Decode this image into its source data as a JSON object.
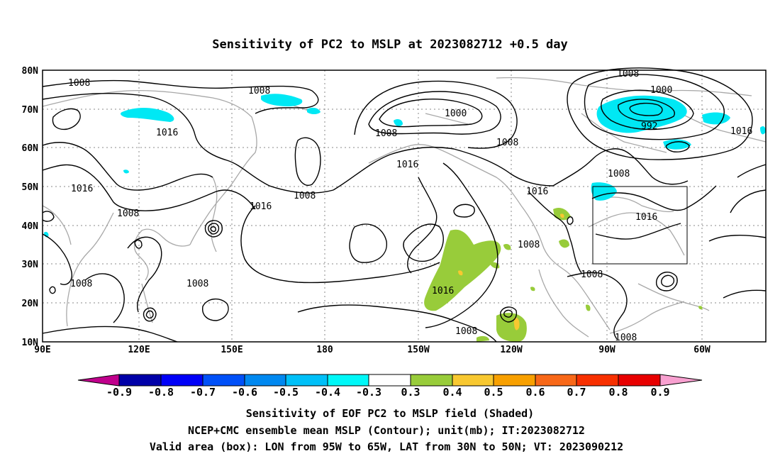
{
  "title": "Sensitivity of PC2 to MSLP at 2023082712 +0.5 day",
  "map": {
    "lat_ticks": [
      "80N",
      "70N",
      "60N",
      "50N",
      "40N",
      "30N",
      "20N",
      "10N"
    ],
    "lon_ticks": [
      "90E",
      "120E",
      "150E",
      "180",
      "150W",
      "120W",
      "90W",
      "60W"
    ],
    "lon_range": [
      "90E",
      "45W"
    ],
    "lat_range": [
      "10N",
      "80N"
    ],
    "grid": "dotted",
    "valid_box": {
      "lon": [
        "95W",
        "65W"
      ],
      "lat": [
        "30N",
        "50N"
      ]
    },
    "contour_labels": [
      "1008",
      "1008",
      "1016",
      "1000",
      "1008",
      "1008",
      "1008",
      "1000",
      "992",
      "1016",
      "1016",
      "1008",
      "1016",
      "1008",
      "1016",
      "1016",
      "1008",
      "1016",
      "1008",
      "1008",
      "1016",
      "1008",
      "1008",
      "1008",
      "1008"
    ],
    "shading_colors": {
      "negative": "#00e8f4",
      "positive": "#98cc3a",
      "positive_strong": "#f8c830"
    }
  },
  "colorbar": {
    "labels": [
      "-0.9",
      "-0.8",
      "-0.7",
      "-0.6",
      "-0.5",
      "-0.4",
      "-0.3",
      "0.3",
      "0.4",
      "0.5",
      "0.6",
      "0.7",
      "0.8",
      "0.9"
    ],
    "colors": [
      "#c0008c",
      "#0000a8",
      "#0000f8",
      "#0050f8",
      "#0088f0",
      "#00c0f8",
      "#00f8f8",
      "#ffffff",
      "#98cc3a",
      "#f8c830",
      "#f8a000",
      "#f86818",
      "#f83000",
      "#e80000",
      "#f8a0d0"
    ]
  },
  "captions": [
    "Sensitivity of EOF PC2 to MSLP field (Shaded)",
    "NCEP+CMC ensemble mean MSLP (Contour); unit(mb); IT:2023082712",
    "Valid area (box): LON from 95W to 65W, LAT from 30N to 50N; VT: 2023090212"
  ]
}
